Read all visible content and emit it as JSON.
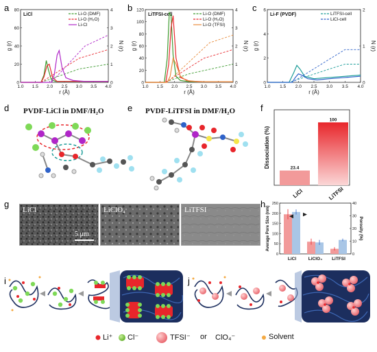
{
  "panels": {
    "a": {
      "letter": "a",
      "inner_label": "LiCl",
      "legend": [
        "Li-O (DMF)",
        "Li-O (H₂O)",
        "Li-Cl"
      ],
      "ylabel_left": "g (r)",
      "ylabel_right": "N (r)",
      "xlabel": "r (Å)",
      "xticks": [
        "1.0",
        "1.5",
        "2.0",
        "2.5",
        "3.0",
        "3.5",
        "4.0"
      ],
      "yticks_left": [
        "0",
        "20",
        "40",
        "60",
        "80"
      ],
      "yticks_right": [
        "0",
        "1",
        "2",
        "3",
        "4"
      ]
    },
    "b": {
      "letter": "b",
      "inner_label": "LiTFSI-cell",
      "legend": [
        "Li-O (DMF)",
        "Li-O (H₂O)",
        "Li-O (TFSI)"
      ],
      "ylabel_left": "g (r)",
      "ylabel_right": "N (r)",
      "xlabel": "r (Å)",
      "xticks": [
        "1.0",
        "1.5",
        "2.0",
        "2.5",
        "3.0",
        "3.5",
        "4.0"
      ],
      "yticks_left": [
        "0",
        "20",
        "40",
        "60",
        "80",
        "100",
        "120"
      ],
      "yticks_right": [
        "0",
        "1",
        "2",
        "3",
        "4"
      ]
    },
    "c": {
      "letter": "c",
      "inner_label": "Li-F (PVDF)",
      "legend": [
        "LiTFSI-cell",
        "LiCl-cell"
      ],
      "ylabel_left": "g (r)",
      "ylabel_right": "N (r)",
      "xlabel": "r (Å)",
      "xticks": [
        "1.0",
        "1.5",
        "2.0",
        "2.5",
        "3.0",
        "3.5",
        "4.0"
      ],
      "yticks_left": [
        "0",
        "2",
        "4",
        "6"
      ],
      "yticks_right": [
        "0",
        "1",
        "2"
      ]
    },
    "d": {
      "letter": "d",
      "title": "PVDF-LiCl in DMF/H₂O"
    },
    "e": {
      "letter": "e",
      "title": "PVDF-LiTFSI in DMF/H₂O"
    },
    "f": {
      "letter": "f",
      "ylabel": "Dissociation (%)"
    },
    "g": {
      "letter": "g",
      "images": [
        "LiCl",
        "LiClO₄",
        "LiTFSI"
      ],
      "scalebar": "5 μm"
    },
    "h": {
      "letter": "h",
      "ylabel_left": "Average Pore Size (nm)",
      "ylabel_right": "Porosity (%)",
      "yticks_left": [
        "0",
        "50",
        "100",
        "150",
        "200",
        "250"
      ],
      "yticks_right": [
        "0",
        "10",
        "20",
        "30",
        "40"
      ]
    },
    "i": {
      "letter": "i"
    },
    "j": {
      "letter": "j"
    }
  },
  "legend_bottom": {
    "li": "Li⁺",
    "cl": "Cl⁻",
    "tfsi": "TFSI⁻",
    "or": "or",
    "clo4": "ClO₄⁻",
    "solvent": "Solvent"
  },
  "colors": {
    "red": "#e8262b",
    "green": "#3c9a2e",
    "purple": "#b026c8",
    "blue": "#2e62c9",
    "teal": "#1b9c98",
    "orange": "#e88a3a",
    "pink": "#f29a9a",
    "lightblue": "#a9c6e6",
    "navy": "#1c2e5e"
  },
  "chart_data": [
    {
      "panel": "a",
      "type": "line",
      "xlim": [
        1.0,
        4.0
      ],
      "ylim": [
        0,
        80
      ],
      "y2lim": [
        0,
        4
      ],
      "series": [
        {
          "name": "Li-O (DMF)",
          "color": "#3c9a2e",
          "x": [
            1.0,
            1.7,
            1.8,
            1.88,
            1.95,
            2.05,
            2.2,
            2.5,
            3.0,
            4.0
          ],
          "y": [
            0,
            0,
            8,
            24,
            14,
            3,
            1,
            1,
            1,
            1
          ]
        },
        {
          "name": "Li-O (H₂O)",
          "color": "#e8262b",
          "x": [
            1.0,
            1.7,
            1.8,
            1.9,
            1.98,
            2.1,
            2.25,
            2.5,
            3.0,
            4.0
          ],
          "y": [
            0,
            0,
            6,
            18,
            20,
            5,
            1,
            1,
            1,
            1
          ]
        },
        {
          "name": "Li-Cl",
          "color": "#b026c8",
          "x": [
            1.0,
            2.05,
            2.15,
            2.25,
            2.32,
            2.42,
            2.55,
            2.8,
            3.2,
            4.0
          ],
          "y": [
            0,
            0,
            8,
            30,
            35,
            16,
            5,
            2,
            1,
            1
          ]
        }
      ]
    },
    {
      "panel": "b",
      "type": "line",
      "xlim": [
        1.0,
        4.0
      ],
      "ylim": [
        0,
        120
      ],
      "y2lim": [
        0,
        4
      ],
      "series": [
        {
          "name": "Li-O (DMF)",
          "color": "#3c9a2e",
          "x": [
            1.0,
            1.65,
            1.75,
            1.82,
            1.88,
            1.95,
            2.05,
            2.2,
            2.5,
            4.0
          ],
          "y": [
            0,
            0,
            40,
            115,
            110,
            45,
            10,
            3,
            1,
            1
          ]
        },
        {
          "name": "Li-O (H₂O)",
          "color": "#e8262b",
          "x": [
            1.0,
            1.7,
            1.8,
            1.88,
            1.95,
            2.05,
            2.2,
            2.5,
            3.0,
            4.0
          ],
          "y": [
            0,
            0,
            30,
            90,
            110,
            40,
            8,
            2,
            1,
            1
          ]
        },
        {
          "name": "Li-O (TFSI)",
          "color": "#e88a3a",
          "x": [
            1.0,
            1.75,
            1.85,
            1.95,
            2.05,
            2.2,
            2.4,
            2.8,
            3.2,
            4.0
          ],
          "y": [
            0,
            0,
            10,
            40,
            30,
            10,
            3,
            1,
            1,
            1
          ]
        }
      ]
    },
    {
      "panel": "c",
      "type": "line",
      "xlim": [
        1.0,
        4.0
      ],
      "ylim": [
        0,
        6
      ],
      "y2lim": [
        0,
        2
      ],
      "series": [
        {
          "name": "LiTFSI-cell",
          "color": "#1b9c98",
          "x": [
            1.0,
            1.7,
            1.85,
            1.95,
            2.05,
            2.2,
            2.5,
            3.0,
            3.5,
            4.0
          ],
          "y": [
            0,
            0,
            0.8,
            1.4,
            1.1,
            0.5,
            0.3,
            0.4,
            0.5,
            0.6
          ]
        },
        {
          "name": "LiCl-cell",
          "color": "#2e62c9",
          "x": [
            1.0,
            1.8,
            1.9,
            2.0,
            2.1,
            2.3,
            2.6,
            3.0,
            3.5,
            4.0
          ],
          "y": [
            0,
            0,
            0.4,
            0.7,
            0.6,
            0.3,
            0.2,
            0.3,
            0.4,
            0.5
          ]
        }
      ]
    },
    {
      "panel": "f",
      "type": "bar",
      "categories": [
        "LiCl",
        "LiTFSI"
      ],
      "values": [
        23.4,
        100
      ],
      "ylim": [
        0,
        120
      ],
      "value_labels": [
        "23.4",
        "100"
      ]
    },
    {
      "panel": "h",
      "type": "bar",
      "categories": [
        "LiCl",
        "LiClO₄",
        "LiTFSI"
      ],
      "ylim": [
        0,
        250
      ],
      "y2lim": [
        0,
        40
      ],
      "series": [
        {
          "color": "#f29a9a",
          "axis": "left",
          "values": [
            195,
            60,
            25
          ],
          "errors": [
            25,
            15,
            8
          ]
        },
        {
          "color": "#a9c6e6",
          "axis": "right",
          "values": [
            33,
            9,
            11
          ],
          "errors": [
            2,
            2,
            1
          ]
        }
      ]
    }
  ]
}
